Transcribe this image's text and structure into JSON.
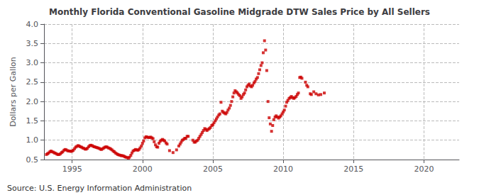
{
  "chart_data": {
    "type": "scatter",
    "title": "Monthly Florida Conventional Gasoline Midgrade DTW Sales Price by All Sellers",
    "ylabel": "Dollars per Gallon",
    "annotations": [
      "Source: U.S. Energy Information Administration"
    ],
    "color": "#CC0000",
    "marker": "square",
    "grid": true,
    "xlim": [
      1993.0,
      2022.5
    ],
    "xticks": [
      1995,
      2000,
      2005,
      2010,
      2015,
      2020
    ],
    "ylim": [
      0.5,
      4.0
    ],
    "yticks": [
      0.5,
      {
        "value": 1.0,
        "label": "1.0"
      },
      1.5,
      {
        "value": 2.0,
        "label": "2.0"
      },
      2.5,
      {
        "value": 3.0,
        "label": "3.0"
      },
      3.5,
      {
        "value": 4.0,
        "label": "4.0"
      }
    ],
    "x": [
      1993.17,
      1993.25,
      1993.33,
      1993.42,
      1993.5,
      1993.58,
      1993.67,
      1993.75,
      1993.83,
      1993.92,
      1994.0,
      1994.08,
      1994.17,
      1994.25,
      1994.33,
      1994.42,
      1994.5,
      1994.58,
      1994.67,
      1994.75,
      1994.83,
      1994.92,
      1995.0,
      1995.08,
      1995.17,
      1995.25,
      1995.33,
      1995.42,
      1995.5,
      1995.58,
      1995.67,
      1995.75,
      1995.83,
      1995.92,
      1996.0,
      1996.08,
      1996.17,
      1996.25,
      1996.33,
      1996.42,
      1996.5,
      1996.58,
      1996.67,
      1996.75,
      1996.83,
      1996.92,
      1997.0,
      1997.08,
      1997.17,
      1997.25,
      1997.33,
      1997.42,
      1997.5,
      1997.58,
      1997.67,
      1997.75,
      1997.83,
      1997.92,
      1998.0,
      1998.08,
      1998.17,
      1998.25,
      1998.33,
      1998.42,
      1998.5,
      1998.58,
      1998.67,
      1998.75,
      1998.83,
      1998.92,
      1999.0,
      1999.08,
      1999.17,
      1999.25,
      1999.33,
      1999.42,
      1999.5,
      1999.58,
      1999.67,
      1999.75,
      1999.83,
      1999.92,
      2000.0,
      2000.08,
      2000.17,
      2000.25,
      2000.33,
      2000.42,
      2000.5,
      2000.58,
      2000.67,
      2000.75,
      2000.83,
      2000.92,
      2001.0,
      2001.08,
      2001.17,
      2001.25,
      2001.33,
      2001.42,
      2001.5,
      2001.58,
      2001.67,
      2001.75,
      2001.92,
      2002.17,
      2002.42,
      2002.58,
      2002.67,
      2002.75,
      2002.83,
      2002.92,
      2003.0,
      2003.08,
      2003.17,
      2003.25,
      2003.58,
      2003.67,
      2003.75,
      2003.83,
      2003.92,
      2004.0,
      2004.08,
      2004.17,
      2004.25,
      2004.33,
      2004.42,
      2004.5,
      2004.58,
      2004.67,
      2004.75,
      2004.83,
      2004.92,
      2005.0,
      2005.08,
      2005.17,
      2005.25,
      2005.33,
      2005.42,
      2005.5,
      2005.58,
      2005.67,
      2005.75,
      2005.83,
      2005.92,
      2006.0,
      2006.08,
      2006.17,
      2006.25,
      2006.33,
      2006.42,
      2006.5,
      2006.58,
      2006.67,
      2006.75,
      2006.83,
      2006.92,
      2007.0,
      2007.08,
      2007.17,
      2007.25,
      2007.33,
      2007.42,
      2007.5,
      2007.58,
      2007.67,
      2007.75,
      2007.83,
      2007.92,
      2008.0,
      2008.08,
      2008.17,
      2008.25,
      2008.33,
      2008.42,
      2008.5,
      2008.58,
      2008.67,
      2008.75,
      2008.83,
      2008.92,
      2009.0,
      2009.08,
      2009.17,
      2009.25,
      2009.33,
      2009.42,
      2009.5,
      2009.58,
      2009.67,
      2009.75,
      2009.83,
      2009.92,
      2010.0,
      2010.08,
      2010.17,
      2010.25,
      2010.33,
      2010.42,
      2010.5,
      2010.58,
      2010.67,
      2010.75,
      2010.83,
      2010.92,
      2011.0,
      2011.08,
      2011.17,
      2011.25,
      2011.33,
      2011.58,
      2011.67,
      2011.75,
      2011.92,
      2012.0,
      2012.17,
      2012.33,
      2012.5,
      2012.67,
      2012.92
    ],
    "values": [
      0.63,
      0.65,
      0.67,
      0.7,
      0.72,
      0.7,
      0.69,
      0.67,
      0.66,
      0.64,
      0.63,
      0.63,
      0.65,
      0.68,
      0.7,
      0.74,
      0.76,
      0.75,
      0.73,
      0.72,
      0.72,
      0.71,
      0.72,
      0.74,
      0.78,
      0.82,
      0.84,
      0.86,
      0.85,
      0.83,
      0.82,
      0.8,
      0.79,
      0.77,
      0.77,
      0.79,
      0.83,
      0.86,
      0.87,
      0.86,
      0.84,
      0.83,
      0.82,
      0.81,
      0.8,
      0.79,
      0.77,
      0.76,
      0.78,
      0.8,
      0.82,
      0.83,
      0.82,
      0.8,
      0.79,
      0.77,
      0.75,
      0.72,
      0.7,
      0.67,
      0.65,
      0.63,
      0.62,
      0.61,
      0.6,
      0.6,
      0.59,
      0.57,
      0.56,
      0.55,
      0.54,
      0.56,
      0.61,
      0.67,
      0.72,
      0.74,
      0.76,
      0.75,
      0.74,
      0.76,
      0.8,
      0.85,
      0.92,
      0.98,
      1.06,
      1.09,
      1.08,
      1.07,
      1.07,
      1.08,
      1.06,
      1.04,
      0.96,
      0.88,
      0.83,
      0.82,
      0.92,
      0.97,
      1.0,
      1.02,
      1.0,
      0.98,
      0.93,
      0.9,
      0.73,
      0.68,
      0.75,
      0.85,
      0.9,
      0.95,
      1.0,
      1.02,
      1.05,
      1.05,
      1.1,
      1.1,
      1.0,
      0.95,
      0.95,
      0.98,
      1.0,
      1.05,
      1.1,
      1.15,
      1.2,
      1.25,
      1.3,
      1.28,
      1.25,
      1.28,
      1.3,
      1.33,
      1.38,
      1.4,
      1.45,
      1.5,
      1.55,
      1.6,
      1.65,
      1.68,
      1.98,
      1.75,
      1.72,
      1.7,
      1.68,
      1.72,
      1.78,
      1.83,
      1.9,
      2.0,
      2.12,
      2.22,
      2.28,
      2.25,
      2.22,
      2.18,
      2.15,
      2.08,
      2.12,
      2.18,
      2.22,
      2.3,
      2.38,
      2.42,
      2.45,
      2.4,
      2.38,
      2.42,
      2.48,
      2.52,
      2.58,
      2.62,
      2.72,
      2.82,
      2.93,
      3.0,
      3.26,
      3.57,
      3.33,
      2.8,
      2.0,
      1.58,
      1.42,
      1.23,
      1.38,
      1.53,
      1.6,
      1.63,
      1.6,
      1.57,
      1.6,
      1.63,
      1.68,
      1.73,
      1.78,
      1.88,
      1.98,
      2.03,
      2.08,
      2.1,
      2.13,
      2.1,
      2.08,
      2.1,
      2.13,
      2.18,
      2.22,
      2.62,
      2.63,
      2.6,
      2.5,
      2.42,
      2.38,
      2.2,
      2.18,
      2.25,
      2.2,
      2.17,
      2.18,
      2.22
    ]
  }
}
